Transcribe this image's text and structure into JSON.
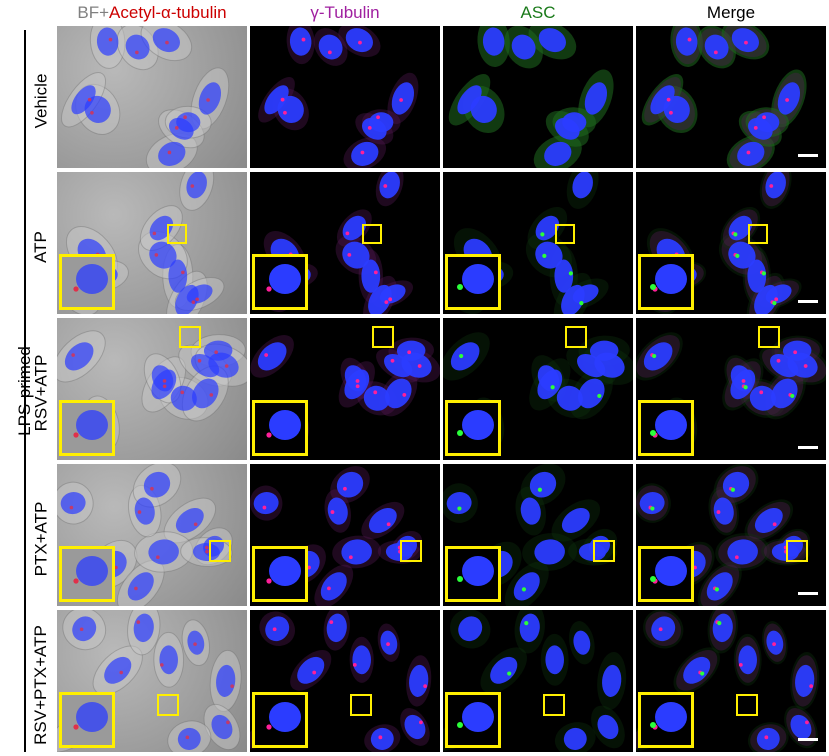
{
  "columns": [
    {
      "prefix": "BF+",
      "main": "Acetyl-α-tubulin",
      "prefix_color": "#808080",
      "main_color": "#cc0000"
    },
    {
      "prefix": "",
      "main": "γ-Tubulin",
      "prefix_color": "#a020a0",
      "main_color": "#a020a0"
    },
    {
      "prefix": "",
      "main": "ASC",
      "prefix_color": "#1a7a1a",
      "main_color": "#1a7a1a"
    },
    {
      "prefix": "",
      "main": "Merge",
      "prefix_color": "#000000",
      "main_color": "#000000"
    }
  ],
  "group_label": "LPS-primed",
  "rows": [
    {
      "label": "Vehicle"
    },
    {
      "label": "ATP"
    },
    {
      "label": "RSV+ATP"
    },
    {
      "label": "PTX+ATP"
    },
    {
      "label": "RSV+PTX+ATP"
    }
  ],
  "colors": {
    "nucleus": "#2b3cff",
    "gamma_tubulin": "#ff1f9a",
    "asc": "#2bff3a",
    "inset_border": "#ffef00",
    "scalebar": "#ffffff"
  }
}
